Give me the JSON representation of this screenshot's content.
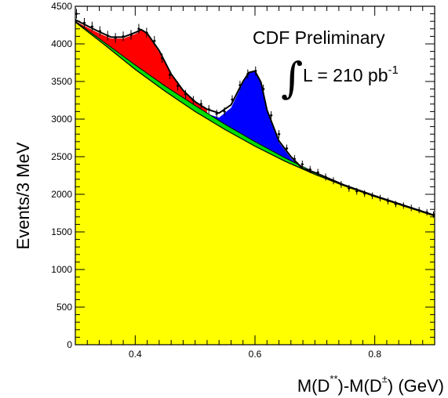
{
  "chart_data": {
    "type": "area",
    "title": "",
    "xlabel_parts": {
      "lead": "M(D",
      "sup1": "**",
      "mid": ")-M(D",
      "sup2": "±",
      "tail": ") (GeV)"
    },
    "ylabel": "Events/3 MeV",
    "xlim": [
      0.3,
      0.9
    ],
    "ylim": [
      0,
      4500
    ],
    "x_ticks": [
      "0.4",
      "0.6",
      "0.8"
    ],
    "x_tick_values": [
      0.4,
      0.6,
      0.8
    ],
    "y_ticks": [
      "0",
      "500",
      "1000",
      "1500",
      "2000",
      "2500",
      "3000",
      "3500",
      "4000",
      "4500"
    ],
    "y_tick_values": [
      0,
      500,
      1000,
      1500,
      2000,
      2500,
      3000,
      3500,
      4000,
      4500
    ],
    "annotation": {
      "line1": "CDF Preliminary",
      "integral": "∫",
      "lumi_text": "L = 210 pb",
      "lumi_sup": "-1"
    },
    "colors": {
      "background_fill": "#ffff00",
      "green_band": "#00dd00",
      "red_peak": "#ff0000",
      "blue_peak": "#0000ff",
      "fit_line": "#000000",
      "data_points": "#000000"
    },
    "background": {
      "x": [
        0.3,
        0.35,
        0.4,
        0.45,
        0.5,
        0.55,
        0.6,
        0.65,
        0.7,
        0.75,
        0.8,
        0.85,
        0.9
      ],
      "y": [
        4290,
        3980,
        3660,
        3370,
        3100,
        2860,
        2640,
        2440,
        2265,
        2110,
        1970,
        1840,
        1710
      ]
    },
    "green_band": {
      "x": [
        0.3,
        0.35,
        0.4,
        0.45,
        0.5,
        0.55,
        0.6,
        0.65,
        0.7,
        0.75,
        0.8,
        0.85,
        0.9
      ],
      "y": [
        4300,
        4010,
        3720,
        3440,
        3180,
        2930,
        2700,
        2485,
        2290,
        2120,
        1975,
        1845,
        1715
      ]
    },
    "series": [
      {
        "name": "",
        "color": "#ff0000",
        "x": [
          0.3,
          0.32,
          0.34,
          0.36,
          0.38,
          0.4,
          0.41,
          0.42,
          0.44,
          0.46,
          0.48,
          0.5,
          0.52
        ],
        "y": [
          4300,
          4220,
          4140,
          4070,
          4070,
          4130,
          4180,
          4130,
          3890,
          3590,
          3380,
          3230,
          3120
        ]
      },
      {
        "name": "",
        "color": "#0000ff",
        "x": [
          0.5,
          0.52,
          0.54,
          0.56,
          0.58,
          0.59,
          0.6,
          0.61,
          0.62,
          0.64,
          0.66,
          0.68,
          0.7
        ],
        "y": [
          3180,
          3070,
          3020,
          3150,
          3480,
          3610,
          3630,
          3480,
          3100,
          2690,
          2480,
          2330,
          2290
        ]
      }
    ],
    "fit_curve": {
      "x": [
        0.3,
        0.32,
        0.34,
        0.36,
        0.38,
        0.4,
        0.41,
        0.42,
        0.44,
        0.46,
        0.48,
        0.5,
        0.52,
        0.54,
        0.56,
        0.58,
        0.59,
        0.6,
        0.61,
        0.62,
        0.64,
        0.66,
        0.68,
        0.7,
        0.75,
        0.8,
        0.85,
        0.9
      ],
      "y": [
        4320,
        4240,
        4160,
        4090,
        4090,
        4150,
        4190,
        4140,
        3910,
        3600,
        3380,
        3230,
        3130,
        3080,
        3190,
        3500,
        3620,
        3640,
        3490,
        3120,
        2710,
        2500,
        2340,
        2290,
        2120,
        1980,
        1850,
        1720
      ]
    },
    "data_points": {
      "x": [
        0.302,
        0.315,
        0.328,
        0.341,
        0.354,
        0.367,
        0.38,
        0.393,
        0.406,
        0.419,
        0.432,
        0.445,
        0.458,
        0.471,
        0.484,
        0.497,
        0.51,
        0.523,
        0.536,
        0.549,
        0.562,
        0.575,
        0.588,
        0.601,
        0.614,
        0.627,
        0.64,
        0.653,
        0.666,
        0.679,
        0.692,
        0.705,
        0.718,
        0.731,
        0.744,
        0.757,
        0.77,
        0.783,
        0.796,
        0.809,
        0.822,
        0.835,
        0.848,
        0.861,
        0.874,
        0.887,
        0.898
      ],
      "y": [
        4400,
        4280,
        4230,
        4170,
        4110,
        4080,
        4100,
        4120,
        4200,
        4150,
        4040,
        3810,
        3590,
        3440,
        3330,
        3250,
        3200,
        3130,
        3070,
        3100,
        3260,
        3450,
        3600,
        3640,
        3400,
        3050,
        2800,
        2610,
        2470,
        2400,
        2330,
        2290,
        2230,
        2180,
        2130,
        2080,
        2040,
        2010,
        1980,
        1950,
        1910,
        1870,
        1850,
        1820,
        1790,
        1760,
        1730
      ],
      "err": [
        65,
        65,
        65,
        64,
        64,
        64,
        64,
        64,
        65,
        64,
        64,
        62,
        60,
        59,
        58,
        57,
        57,
        56,
        55,
        56,
        57,
        59,
        60,
        60,
        58,
        55,
        53,
        51,
        50,
        49,
        48,
        48,
        47,
        47,
        46,
        46,
        45,
        45,
        44,
        44,
        44,
        43,
        43,
        43,
        42,
        42,
        42
      ]
    }
  }
}
